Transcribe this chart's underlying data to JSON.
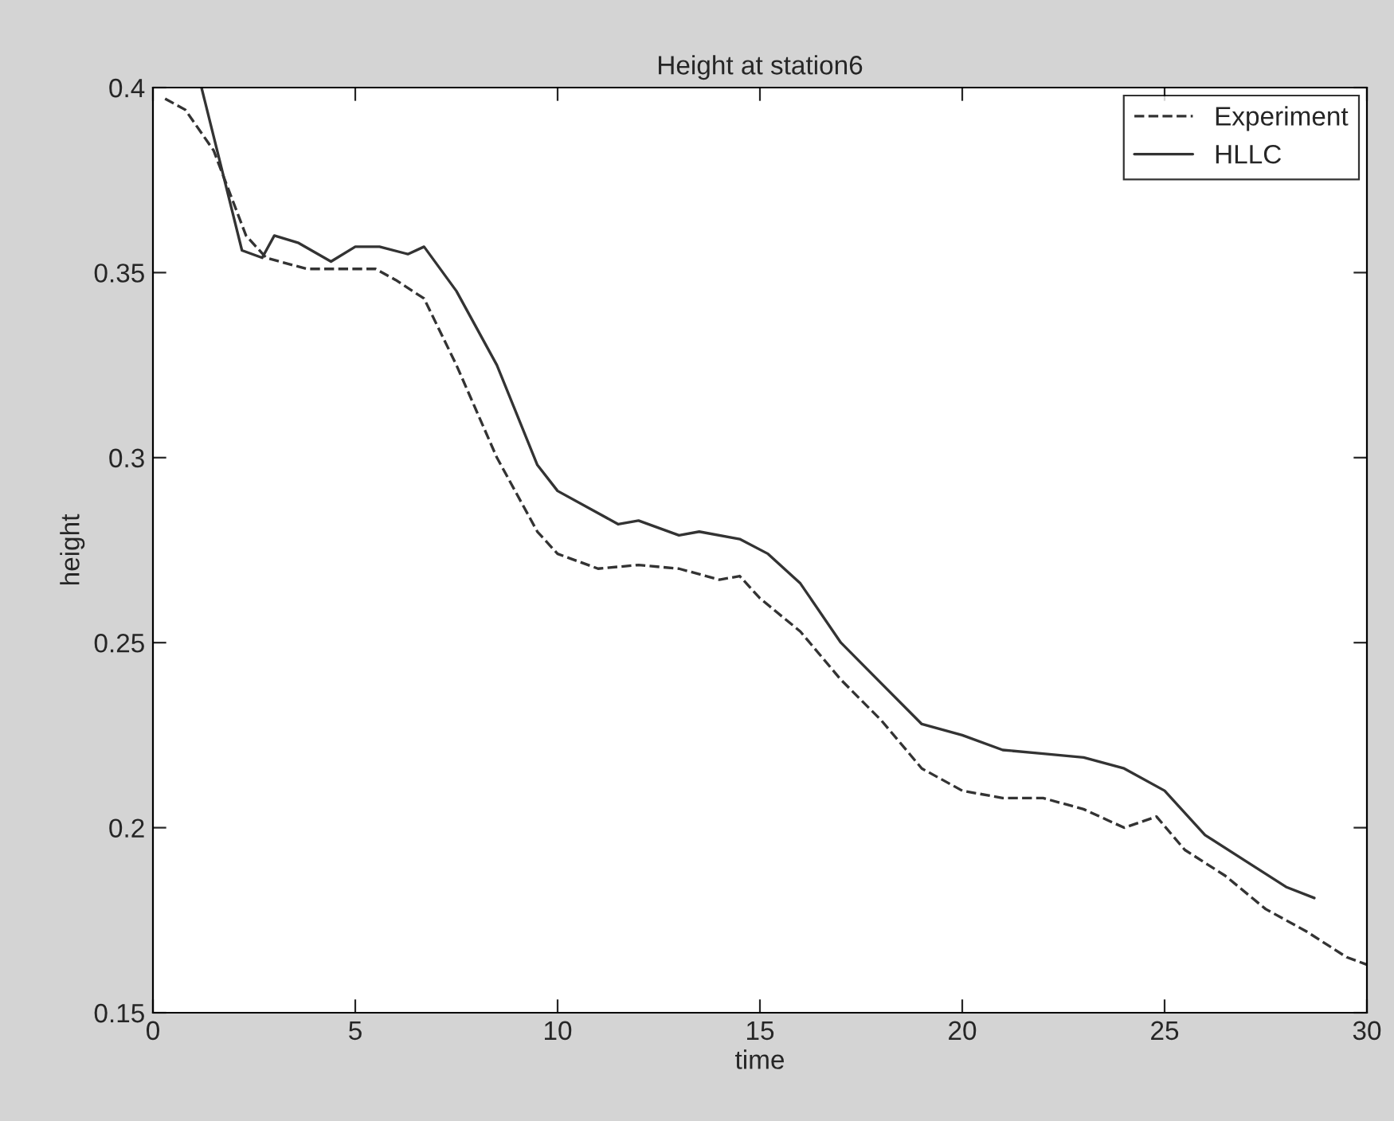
{
  "chart_data": {
    "type": "line",
    "title": "Height at station6",
    "xlabel": "time",
    "ylabel": "height",
    "xlim": [
      0,
      30
    ],
    "xticks": [
      0,
      5,
      10,
      15,
      20,
      25,
      30
    ],
    "ylim": [
      0.15,
      0.4
    ],
    "yticks": [
      0.15,
      0.2,
      0.25,
      0.3,
      0.35,
      0.4
    ],
    "grid": false,
    "legend": "top right",
    "series": [
      {
        "name": "Experiment",
        "color": "#333333",
        "line_style": "dashed",
        "x": [
          0.3,
          0.8,
          1.5,
          2.3,
          2.8,
          3.8,
          4.6,
          5.5,
          6.0,
          6.7,
          7.5,
          8.5,
          9.5,
          10,
          11,
          12,
          13,
          14,
          14.5,
          15,
          16,
          17,
          18,
          19,
          20,
          21,
          22,
          23,
          24,
          24.8,
          25.5,
          26.5,
          27.5,
          28.5,
          29.5,
          30
        ],
        "values": [
          0.397,
          0.394,
          0.383,
          0.36,
          0.354,
          0.351,
          0.351,
          0.351,
          0.348,
          0.343,
          0.325,
          0.3,
          0.28,
          0.274,
          0.27,
          0.271,
          0.27,
          0.267,
          0.268,
          0.262,
          0.253,
          0.24,
          0.229,
          0.216,
          0.21,
          0.208,
          0.208,
          0.205,
          0.2,
          0.203,
          0.194,
          0.187,
          0.178,
          0.172,
          0.165,
          0.163
        ]
      },
      {
        "name": "HLLC",
        "color": "#333333",
        "line_style": "solid",
        "x": [
          1.2,
          2.2,
          2.7,
          3.0,
          3.6,
          4.4,
          5.0,
          5.6,
          6.3,
          6.7,
          7.5,
          8.5,
          9.5,
          10,
          11,
          11.5,
          12,
          13,
          13.5,
          14.5,
          15.2,
          16,
          17,
          18,
          19,
          20,
          21,
          22,
          23,
          24,
          25,
          26,
          27,
          28,
          28.7
        ],
        "values": [
          0.4,
          0.356,
          0.354,
          0.36,
          0.358,
          0.353,
          0.357,
          0.357,
          0.355,
          0.357,
          0.345,
          0.325,
          0.298,
          0.291,
          0.285,
          0.282,
          0.283,
          0.279,
          0.28,
          0.278,
          0.274,
          0.266,
          0.25,
          0.239,
          0.228,
          0.225,
          0.221,
          0.22,
          0.219,
          0.216,
          0.21,
          0.198,
          0.191,
          0.184,
          0.181
        ]
      }
    ]
  }
}
